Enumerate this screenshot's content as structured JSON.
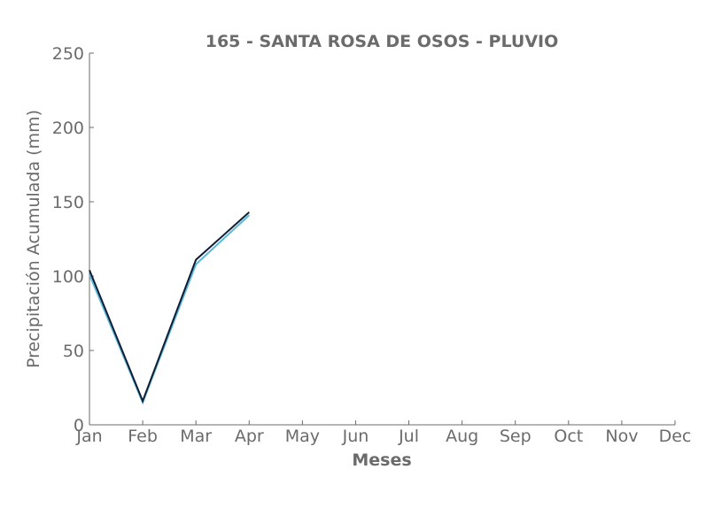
{
  "chart_data": {
    "type": "line",
    "title": "165 - SANTA ROSA DE OSOS - PLUVIO",
    "xlabel": "Meses",
    "ylabel": "Precipitación Acumulada (mm)",
    "categories": [
      "Jan",
      "Feb",
      "Mar",
      "Apr",
      "May",
      "Jun",
      "Jul",
      "Aug",
      "Sep",
      "Oct",
      "Nov",
      "Dec"
    ],
    "ylim": [
      0,
      250
    ],
    "yticks": [
      0,
      50,
      100,
      150,
      200,
      250
    ],
    "grid": false,
    "series": [
      {
        "color": "#5bb8d6",
        "values": [
          101,
          15,
          108,
          141,
          null,
          null,
          null,
          null,
          null,
          null,
          null,
          null
        ]
      },
      {
        "color": "#0f1e36",
        "values": [
          104,
          16,
          111,
          143,
          null,
          null,
          null,
          null,
          null,
          null,
          null,
          null
        ]
      }
    ]
  }
}
